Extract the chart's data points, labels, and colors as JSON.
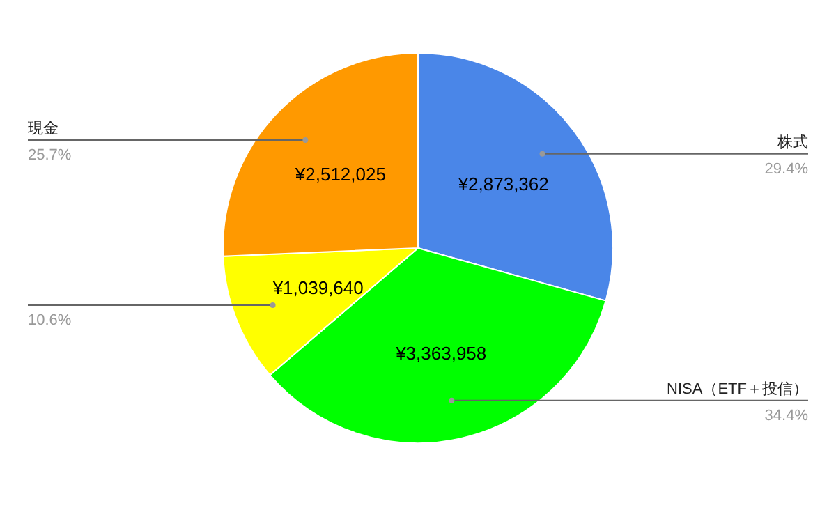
{
  "chart_data": {
    "type": "pie",
    "categories": [
      "株式",
      "NISA（ETF＋投信）",
      null,
      "現金"
    ],
    "values": [
      2873362,
      3363958,
      1039640,
      2512025
    ],
    "colors": [
      "#4a86e8",
      "#00ff00",
      "#ffff00",
      "#ff9900"
    ],
    "value_labels": [
      "¥2,873,362",
      "¥3,363,958",
      "¥1,039,640",
      "¥2,512,025"
    ],
    "annotations": [
      "29.4%",
      "34.4%",
      "10.6%",
      "25.7%"
    ]
  }
}
